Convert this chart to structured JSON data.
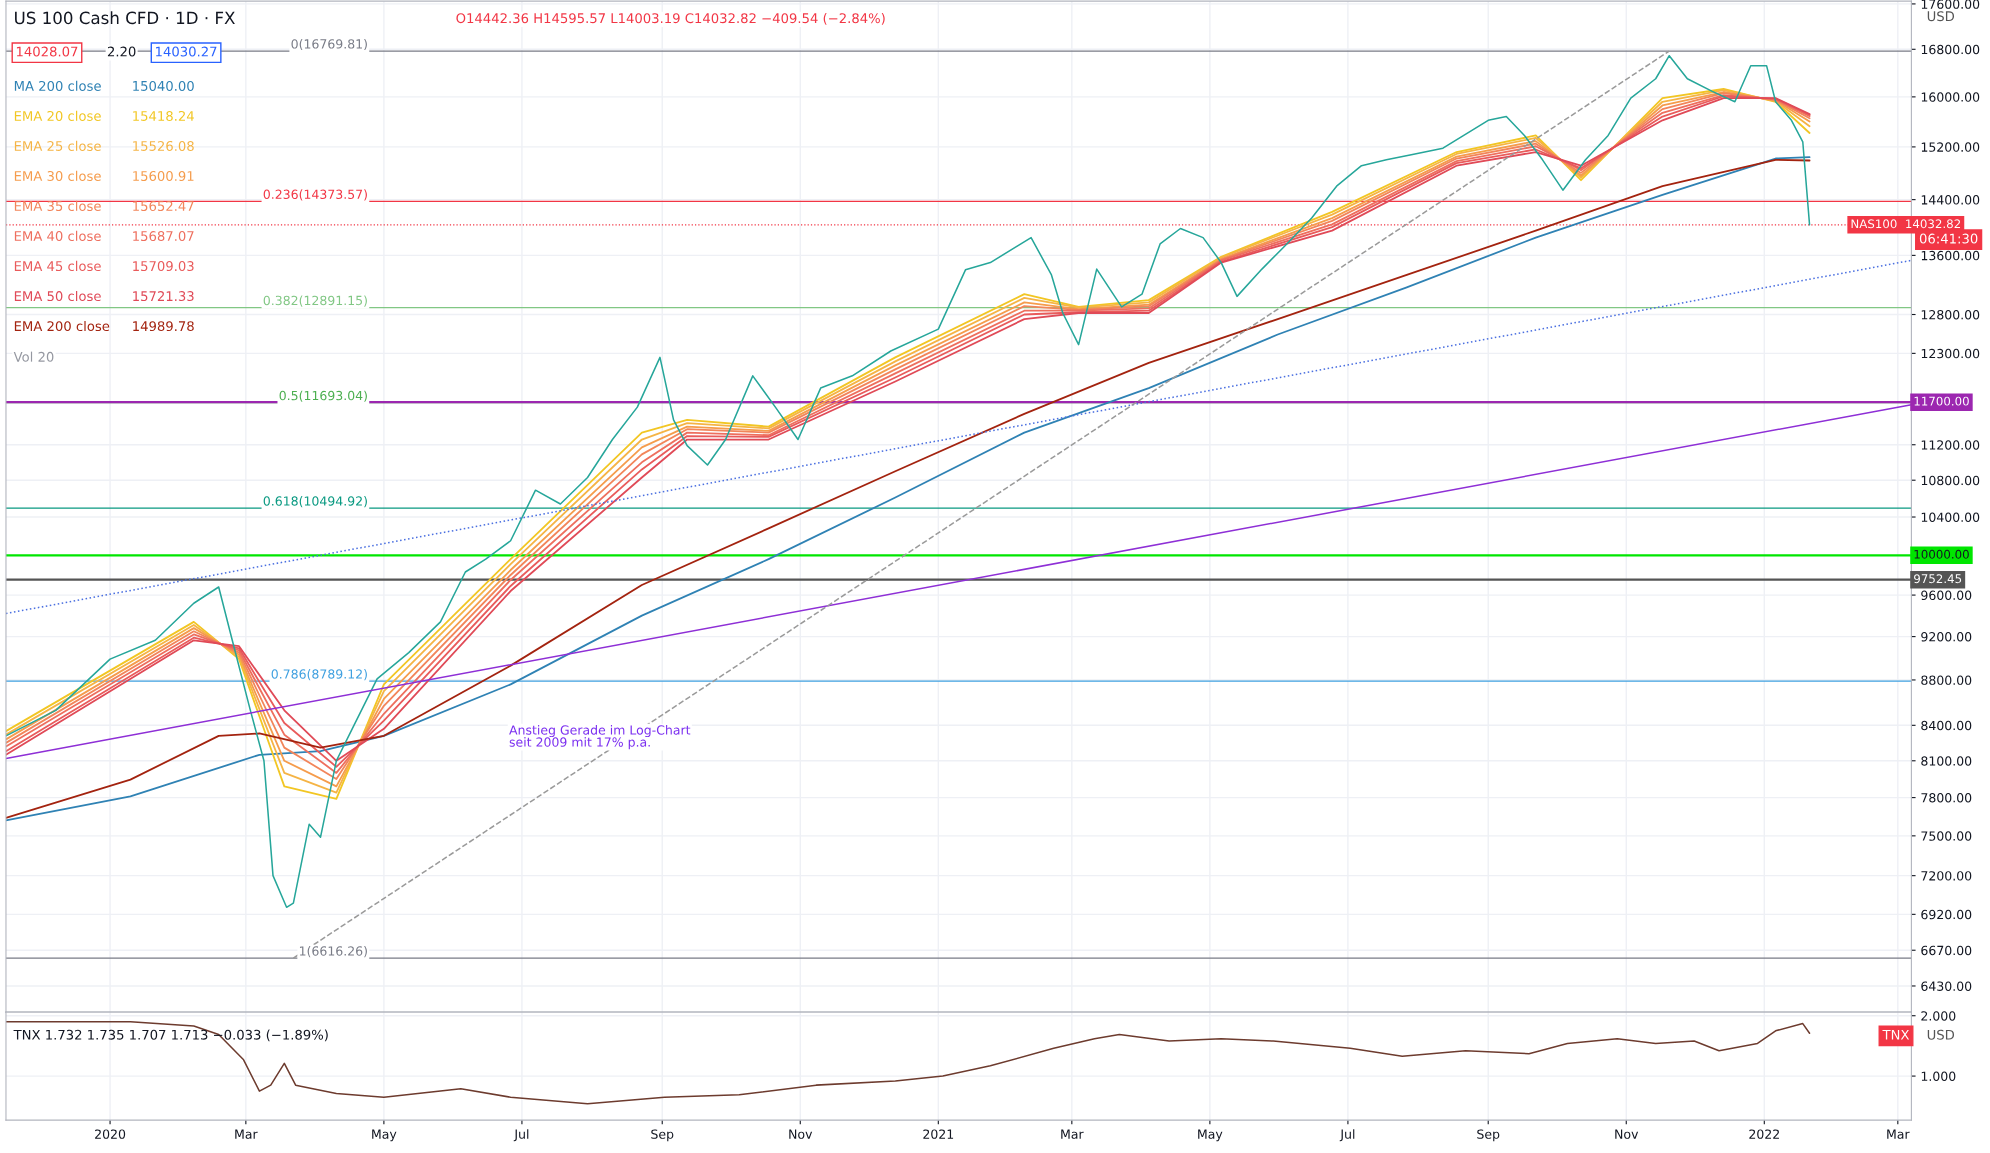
{
  "chart_data": [
    {
      "type": "line",
      "title": "US 100 Cash CFD · 1D · FX",
      "log": "y",
      "grid": true,
      "legend": "top left",
      "tick_labels": "y",
      "xlim": [
        "2019-11-16",
        "2022-03-07"
      ],
      "ylim": [
        6260,
        17650
      ],
      "xticks": [
        {
          "value": "2020-01-01",
          "label": null
        },
        {
          "value": "2020-03-01",
          "label": null
        },
        {
          "value": "2020-05-01",
          "label": null
        },
        {
          "value": "2020-07-01",
          "label": null
        },
        {
          "value": "2020-09-01",
          "label": null
        },
        {
          "value": "2020-11-01",
          "label": null
        },
        {
          "value": "2021-01-01",
          "label": null
        },
        {
          "value": "2021-03-01",
          "label": null
        },
        {
          "value": "2021-05-01",
          "label": null
        },
        {
          "value": "2021-07-01",
          "label": null
        },
        {
          "value": "2021-09-01",
          "label": null
        },
        {
          "value": "2021-11-01",
          "label": null
        },
        {
          "value": "2022-01-01",
          "label": null
        },
        {
          "value": "2022-03-01",
          "label": null
        }
      ],
      "yticks": [
        {
          "value": 17600,
          "label": "17600.00"
        },
        {
          "value": 16800,
          "label": "16800.00"
        },
        {
          "value": 16000,
          "label": "16000.00"
        },
        {
          "value": 15200,
          "label": "15200.00"
        },
        {
          "value": 14400,
          "label": "14400.00"
        },
        {
          "value": 13600,
          "label": "13600.00"
        },
        {
          "value": 12800,
          "label": "12800.00"
        },
        {
          "value": 12300,
          "label": "12300.00"
        },
        {
          "value": 11200,
          "label": "11200.00"
        },
        {
          "value": 10800,
          "label": "10800.00"
        },
        {
          "value": 10400,
          "label": "10400.00"
        },
        {
          "value": 9600,
          "label": "9600.00"
        },
        {
          "value": 9200,
          "label": "9200.00"
        },
        {
          "value": 8800,
          "label": "8800.00"
        },
        {
          "value": 8400,
          "label": "8400.00"
        },
        {
          "value": 8100,
          "label": "8100.00"
        },
        {
          "value": 7800,
          "label": "7800.00"
        },
        {
          "value": 7500,
          "label": "7500.00"
        },
        {
          "value": 7200,
          "label": "7200.00"
        },
        {
          "value": 6920,
          "label": "6920.00"
        },
        {
          "value": 6670,
          "label": "6670.00"
        },
        {
          "value": 6430,
          "label": "6430.00"
        }
      ],
      "x": [
        "2019-11-16",
        "2020-02-07",
        "2020-02-27",
        "2020-03-18",
        "2020-04-10",
        "2020-05-01",
        "2020-06-26",
        "2020-08-23",
        "2020-09-12",
        "2020-10-18",
        "2020-12-13",
        "2021-02-08",
        "2021-03-04",
        "2021-04-04",
        "2021-05-06",
        "2021-06-24",
        "2021-08-18",
        "2021-09-22",
        "2021-10-12",
        "2021-11-17",
        "2021-12-14",
        "2022-01-06",
        "2022-01-21"
      ],
      "series": [
        {
          "name": "MA 200 close",
          "color": "#2f82b4",
          "x": [
            "2019-11-16",
            "2020-01-10",
            "2020-03-07",
            "2020-04-03",
            "2020-05-01",
            "2020-06-26",
            "2020-08-23",
            "2020-10-18",
            "2020-12-13",
            "2021-02-08",
            "2021-04-04",
            "2021-05-31",
            "2021-07-27",
            "2021-09-22",
            "2021-11-17",
            "2022-01-06",
            "2022-01-21"
          ],
          "values": [
            7620,
            7810,
            8150,
            8180,
            8310,
            8760,
            9400,
            9960,
            10610,
            11340,
            11870,
            12540,
            13160,
            13850,
            14470,
            15020,
            15040
          ]
        },
        {
          "name": "EMA 20 close",
          "color": "#f2c623",
          "values": [
            8350,
            9340,
            8990,
            7890,
            7790,
            8760,
            9960,
            11340,
            11490,
            11410,
            12250,
            13070,
            12900,
            12990,
            13580,
            14220,
            15120,
            15380,
            14690,
            15980,
            16130,
            15920,
            15418.24
          ]
        },
        {
          "name": "EMA 25 close",
          "color": "#f5b445",
          "values": [
            8320,
            9310,
            9010,
            8000,
            7840,
            8700,
            9910,
            11260,
            11450,
            11390,
            12200,
            13020,
            12890,
            12960,
            13570,
            14180,
            15090,
            15340,
            14730,
            15920,
            16110,
            15930,
            15526.08
          ]
        },
        {
          "name": "EMA 30 close",
          "color": "#f59c4c",
          "values": [
            8280,
            9280,
            9030,
            8100,
            7890,
            8630,
            9850,
            11170,
            11410,
            11360,
            12150,
            12960,
            12870,
            12930,
            13550,
            14130,
            15050,
            15290,
            14760,
            15860,
            16080,
            15940,
            15600.91
          ]
        },
        {
          "name": "EMA 35 close",
          "color": "#f2855a",
          "values": [
            8250,
            9250,
            9050,
            8210,
            7950,
            8570,
            9800,
            11090,
            11380,
            11340,
            12100,
            12910,
            12860,
            12910,
            13540,
            14090,
            15020,
            15250,
            14800,
            15800,
            16060,
            15950,
            15652.47
          ]
        },
        {
          "name": "EMA 40 close",
          "color": "#ee6f5e",
          "values": [
            8220,
            9220,
            9070,
            8320,
            8000,
            8500,
            9750,
            11000,
            11340,
            11310,
            12050,
            12850,
            12850,
            12880,
            13530,
            14040,
            14980,
            15210,
            14840,
            15740,
            16030,
            15960,
            15687.07
          ]
        },
        {
          "name": "EMA 45 close",
          "color": "#e95b5b",
          "values": [
            8180,
            9190,
            9090,
            8420,
            8050,
            8440,
            9690,
            10920,
            11300,
            11290,
            12000,
            12800,
            12830,
            12850,
            13510,
            14000,
            14950,
            15160,
            14870,
            15680,
            16010,
            15970,
            15709.03
          ]
        },
        {
          "name": "EMA 50 close",
          "color": "#e04a57",
          "values": [
            8150,
            9165,
            9110,
            8530,
            8100,
            8370,
            9640,
            10830,
            11260,
            11260,
            11950,
            12740,
            12820,
            12820,
            13500,
            13950,
            14910,
            15120,
            14910,
            15620,
            15980,
            15980,
            15721.33
          ]
        },
        {
          "name": "EMA 200 close",
          "color": "#a3230f",
          "x": [
            "2019-11-16",
            "2020-01-10",
            "2020-02-18",
            "2020-03-07",
            "2020-04-03",
            "2020-05-01",
            "2020-06-26",
            "2020-08-23",
            "2020-10-18",
            "2020-12-13",
            "2021-02-08",
            "2021-04-04",
            "2021-05-31",
            "2021-07-27",
            "2021-09-22",
            "2021-11-17",
            "2022-01-06",
            "2022-01-21"
          ],
          "values": [
            7640,
            7945,
            8310,
            8330,
            8210,
            8310,
            8930,
            9700,
            10280,
            10900,
            11560,
            12180,
            12740,
            13330,
            13950,
            14600,
            15000,
            14989.78
          ]
        },
        {
          "color": "#26a69a",
          "x": [
            "2019-11-16",
            "2019-12-08",
            "2020-01-01",
            "2020-01-21",
            "2020-02-07",
            "2020-02-18",
            "2020-02-24",
            "2020-03-03",
            "2020-03-09",
            "2020-03-13",
            "2020-03-19",
            "2020-03-22",
            "2020-03-29",
            "2020-04-03",
            "2020-04-10",
            "2020-04-17",
            "2020-04-28",
            "2020-05-12",
            "2020-05-26",
            "2020-06-06",
            "2020-06-15",
            "2020-06-26",
            "2020-07-07",
            "2020-07-18",
            "2020-07-30",
            "2020-08-10",
            "2020-08-21",
            "2020-08-31",
            "2020-09-06",
            "2020-09-12",
            "2020-09-21",
            "2020-09-29",
            "2020-10-11",
            "2020-10-21",
            "2020-10-31",
            "2020-11-10",
            "2020-11-24",
            "2020-12-11",
            "2021-01-01",
            "2021-01-13",
            "2021-01-24",
            "2021-02-11",
            "2021-02-20",
            "2021-02-25",
            "2021-03-04",
            "2021-03-12",
            "2021-03-23",
            "2021-04-01",
            "2021-04-09",
            "2021-04-18",
            "2021-04-28",
            "2021-05-06",
            "2021-05-13",
            "2021-05-24",
            "2021-06-04",
            "2021-06-15",
            "2021-06-26",
            "2021-07-07",
            "2021-07-18",
            "2021-07-29",
            "2021-08-12",
            "2021-09-01",
            "2021-09-09",
            "2021-09-17",
            "2021-09-25",
            "2021-10-04",
            "2021-10-14",
            "2021-10-24",
            "2021-11-03",
            "2021-11-14",
            "2021-11-20",
            "2021-11-28",
            "2021-12-09",
            "2021-12-19",
            "2021-12-26",
            "2022-01-02",
            "2022-01-06",
            "2022-01-13",
            "2022-01-18",
            "2022-01-21"
          ],
          "values": [
            8310,
            8530,
            8990,
            9165,
            9520,
            9680,
            9165,
            8530,
            8100,
            7200,
            6970,
            7000,
            7590,
            7490,
            8100,
            8370,
            8810,
            9050,
            9340,
            9830,
            9960,
            10150,
            10690,
            10540,
            10830,
            11260,
            11640,
            12250,
            11490,
            11190,
            10970,
            11260,
            12020,
            11640,
            11260,
            11870,
            12020,
            12330,
            12610,
            13400,
            13500,
            13850,
            13330,
            12820,
            12410,
            13410,
            12900,
            13070,
            13760,
            13980,
            13850,
            13500,
            13040,
            13410,
            13760,
            14130,
            14600,
            14910,
            15000,
            15080,
            15180,
            15620,
            15680,
            15380,
            15000,
            14540,
            15000,
            15380,
            15980,
            16300,
            16690,
            16300,
            16090,
            15920,
            16520,
            16520,
            15920,
            15620,
            15280,
            14032.82
          ]
        },
        {
          "color": "#8e2fd6",
          "x": [
            "2019-11-16",
            "2022-03-07"
          ],
          "values": [
            8120,
            11670
          ]
        },
        {
          "color": "#4a6fe0",
          "line_style": "dotted",
          "x": [
            "2019-11-16",
            "2022-03-07"
          ],
          "values": [
            9420,
            13530
          ]
        },
        {
          "color": "#9a9a9a",
          "line_style": "dashed",
          "x": [
            "2020-03-22",
            "2021-11-20"
          ],
          "values": [
            6616.26,
            16769.81
          ]
        }
      ],
      "ref_lines": [
        {
          "axis": "y",
          "value": 16769.81,
          "label": "0(16769.81)",
          "color": "#787b86"
        },
        {
          "axis": "y",
          "value": 14373.57,
          "label": "0.236(14373.57)",
          "color": "#f23645"
        },
        {
          "axis": "y",
          "value": 12891.15,
          "label": "0.382(12891.15)",
          "color": "#81c784"
        },
        {
          "axis": "y",
          "value": 11693.04,
          "label": "0.5(11693.04)",
          "color": "#4caf50"
        },
        {
          "axis": "y",
          "value": 10494.92,
          "label": "0.618(10494.92)",
          "color": "#089981"
        },
        {
          "axis": "y",
          "value": 8789.12,
          "label": "0.786(8789.12)",
          "color": "#3fa0e0"
        },
        {
          "axis": "y",
          "value": 6616.26,
          "label": "1(6616.26)",
          "color": "#787b86"
        },
        {
          "axis": "y",
          "value": 11700,
          "label": "11700.00",
          "color": "#9c27b0"
        },
        {
          "axis": "y",
          "value": 10000,
          "label": "10000.00",
          "color": "#00e600"
        },
        {
          "axis": "y",
          "value": 9752.45,
          "label": "9752.45",
          "color": "#555555"
        },
        {
          "axis": "y",
          "value": 14032.82,
          "label": "NAS100  14032.82",
          "color": "#f23645",
          "line_style": "dotted"
        }
      ],
      "annotations": [
        "O14442.36 H14595.57 L14003.19 C14032.82 −409.54 (−2.84%)",
        "14028.07",
        "2.20",
        "14030.27",
        "15040.00",
        "15418.24",
        "15526.08",
        "15600.91",
        "15652.47",
        "15687.07",
        "15709.03",
        "15721.33",
        "14989.78",
        "Vol 20",
        "Anstieg Gerade im Log-Chart\nseit 2009 mit 17% p.a.",
        "06:41:30",
        "USD"
      ]
    },
    {
      "type": "line",
      "grid": true,
      "xlim": [
        "2019-11-16",
        "2022-03-07"
      ],
      "ylim": [
        0.27,
        2.06
      ],
      "xticks": [
        {
          "value": "2020-01-01",
          "label": "2020"
        },
        {
          "value": "2020-03-01",
          "label": "Mar"
        },
        {
          "value": "2020-05-01",
          "label": "May"
        },
        {
          "value": "2020-07-01",
          "label": "Jul"
        },
        {
          "value": "2020-09-01",
          "label": "Sep"
        },
        {
          "value": "2020-11-01",
          "label": "Nov"
        },
        {
          "value": "2021-01-01",
          "label": "2021"
        },
        {
          "value": "2021-03-01",
          "label": "Mar"
        },
        {
          "value": "2021-05-01",
          "label": "May"
        },
        {
          "value": "2021-07-01",
          "label": "Jul"
        },
        {
          "value": "2021-09-01",
          "label": "Sep"
        },
        {
          "value": "2021-11-01",
          "label": "Nov"
        },
        {
          "value": "2022-01-01",
          "label": "2022"
        },
        {
          "value": "2022-03-01",
          "label": "Mar"
        }
      ],
      "yticks": [
        {
          "value": 1,
          "label": "1.000"
        },
        {
          "value": 2,
          "label": "2.000"
        }
      ],
      "series": [
        {
          "color": "#6d3b2e",
          "x": [
            "2019-11-16",
            "2020-01-10",
            "2020-02-07",
            "2020-02-18",
            "2020-02-29",
            "2020-03-07",
            "2020-03-12",
            "2020-03-18",
            "2020-03-23",
            "2020-04-10",
            "2020-05-01",
            "2020-06-04",
            "2020-06-26",
            "2020-07-30",
            "2020-09-02",
            "2020-10-05",
            "2020-11-08",
            "2020-12-13",
            "2021-01-03",
            "2021-01-24",
            "2021-02-21",
            "2021-03-11",
            "2021-03-22",
            "2021-04-13",
            "2021-05-06",
            "2021-05-29",
            "2021-07-02",
            "2021-07-25",
            "2021-08-22",
            "2021-09-19",
            "2021-10-06",
            "2021-10-28",
            "2021-11-14",
            "2021-12-01",
            "2021-12-12",
            "2021-12-29",
            "2022-01-06",
            "2022-01-18",
            "2022-01-21"
          ],
          "values": [
            1.9,
            1.9,
            1.83,
            1.69,
            1.27,
            0.75,
            0.85,
            1.21,
            0.85,
            0.71,
            0.65,
            0.79,
            0.65,
            0.54,
            0.65,
            0.69,
            0.85,
            0.92,
            1.0,
            1.17,
            1.46,
            1.62,
            1.69,
            1.58,
            1.62,
            1.58,
            1.46,
            1.33,
            1.42,
            1.37,
            1.54,
            1.62,
            1.54,
            1.58,
            1.42,
            1.54,
            1.75,
            1.87,
            1.71
          ]
        }
      ],
      "annotations": [
        "TNX 1.732 1.735 1.707 1.713 −0.033 (−1.89%)",
        "TNX",
        "USD"
      ]
    }
  ]
}
